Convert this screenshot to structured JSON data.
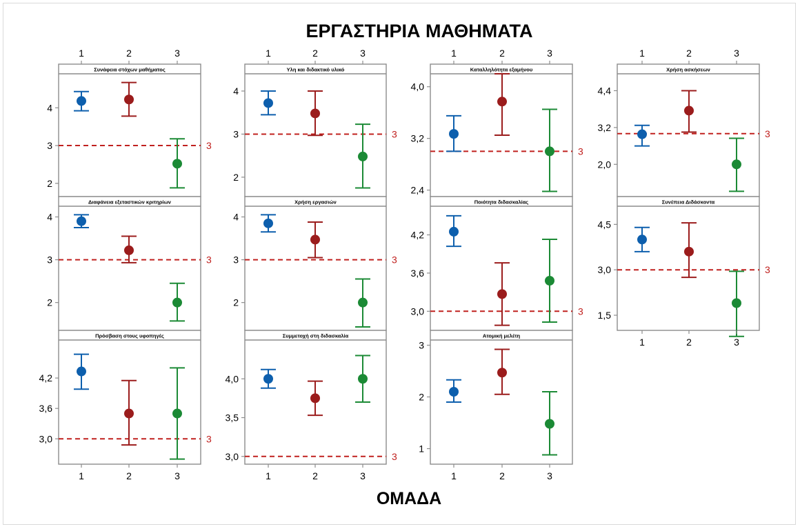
{
  "title": "ΕΡΓΑΣΤΗΡΙΑ ΜΑΘΗΜΑΤΑ",
  "colors": {
    "group1": "#0d5fad",
    "group2": "#9b1c1c",
    "group3": "#1b8a35",
    "reference": "#c0201e",
    "panel_border": "#8c8c8c"
  },
  "chart_data": {
    "type": "interval",
    "title": "ΕΡΓΑΣΤΗΡΙΑ ΜΑΘΗΜΑΤΑ",
    "xlabel": "ΟΜΑΔΑ",
    "categories": [
      "1",
      "2",
      "3"
    ],
    "reference_label": "3",
    "panels": [
      {
        "title": "Συνάφεια στόχων μαθήματος",
        "yticks": [
          "2",
          "3",
          "4"
        ],
        "ytick_values": [
          2,
          3,
          4
        ],
        "ylim": [
          1.65,
          4.9
        ],
        "reference": 3,
        "points": [
          {
            "mean": 4.18,
            "low": 3.92,
            "high": 4.43
          },
          {
            "mean": 4.22,
            "low": 3.78,
            "high": 4.67
          },
          {
            "mean": 2.52,
            "low": 1.88,
            "high": 3.18
          }
        ]
      },
      {
        "title": "Υλη και διδακτικό υλικό",
        "yticks": [
          "2",
          "3",
          "4"
        ],
        "ytick_values": [
          2,
          3,
          4
        ],
        "ylim": [
          1.55,
          4.4
        ],
        "reference": 3,
        "points": [
          {
            "mean": 3.72,
            "low": 3.45,
            "high": 4.0
          },
          {
            "mean": 3.48,
            "low": 2.97,
            "high": 4.0
          },
          {
            "mean": 2.48,
            "low": 1.75,
            "high": 3.23
          }
        ]
      },
      {
        "title": "Καταλληλότητα εξαμήνου",
        "yticks": [
          "2,4",
          "3,2",
          "4,0"
        ],
        "ytick_values": [
          2.4,
          3.2,
          4.0
        ],
        "ylim": [
          2.3,
          4.2
        ],
        "reference": 3,
        "points": [
          {
            "mean": 3.27,
            "low": 3.0,
            "high": 3.55
          },
          {
            "mean": 3.77,
            "low": 3.25,
            "high": 4.2
          },
          {
            "mean": 3.0,
            "low": 2.38,
            "high": 3.65
          }
        ]
      },
      {
        "title": "Χρήση ασκήσεων",
        "yticks": [
          "2,0",
          "3,2",
          "4,4"
        ],
        "ytick_values": [
          2.0,
          3.2,
          4.4
        ],
        "ylim": [
          0.95,
          4.95
        ],
        "reference": 3,
        "points": [
          {
            "mean": 2.98,
            "low": 2.6,
            "high": 3.27
          },
          {
            "mean": 3.75,
            "low": 3.05,
            "high": 4.4
          },
          {
            "mean": 2.0,
            "low": 1.12,
            "high": 2.85
          }
        ]
      },
      {
        "title": "Διαφάνεια εξεταστικών κριτηρίων",
        "yticks": [
          "2",
          "3",
          "4"
        ],
        "ytick_values": [
          2,
          3,
          4
        ],
        "ylim": [
          1.35,
          4.25
        ],
        "reference": 3,
        "points": [
          {
            "mean": 3.9,
            "low": 3.75,
            "high": 4.05
          },
          {
            "mean": 3.22,
            "low": 2.93,
            "high": 3.55
          },
          {
            "mean": 2.0,
            "low": 1.57,
            "high": 2.45
          }
        ]
      },
      {
        "title": "Χρήση εργασιών",
        "yticks": [
          "2",
          "3",
          "4"
        ],
        "ytick_values": [
          2,
          3,
          4
        ],
        "ylim": [
          1.35,
          4.25
        ],
        "reference": 3,
        "points": [
          {
            "mean": 3.85,
            "low": 3.65,
            "high": 4.05
          },
          {
            "mean": 3.47,
            "low": 3.05,
            "high": 3.88
          },
          {
            "mean": 2.0,
            "low": 1.43,
            "high": 2.55
          }
        ]
      },
      {
        "title": "Ποιότητα διδασκαλίας",
        "yticks": [
          "3,0",
          "3,6",
          "4,2"
        ],
        "ytick_values": [
          3.0,
          3.6,
          4.2
        ],
        "ylim": [
          2.7,
          4.65
        ],
        "reference": 3,
        "points": [
          {
            "mean": 4.25,
            "low": 4.02,
            "high": 4.5
          },
          {
            "mean": 3.27,
            "low": 2.78,
            "high": 3.76
          },
          {
            "mean": 3.48,
            "low": 2.83,
            "high": 4.13
          }
        ]
      },
      {
        "title": "Συνέπεια Διδάσκοντα",
        "yticks": [
          "1,5",
          "3,0",
          "4,5"
        ],
        "ytick_values": [
          1.5,
          3.0,
          4.5
        ],
        "ylim": [
          1.0,
          5.1
        ],
        "reference": 3,
        "points": [
          {
            "mean": 4.0,
            "low": 3.6,
            "high": 4.4
          },
          {
            "mean": 3.6,
            "low": 2.75,
            "high": 4.55
          },
          {
            "mean": 1.9,
            "low": 0.8,
            "high": 2.95
          }
        ]
      },
      {
        "title": "Πρόσβαση στους υφοπηγές",
        "yticks": [
          "3,0",
          "3,6",
          "4,2"
        ],
        "ytick_values": [
          3.0,
          3.6,
          4.2
        ],
        "ylim": [
          2.5,
          4.95
        ],
        "reference": 3,
        "points": [
          {
            "mean": 4.33,
            "low": 3.98,
            "high": 4.67
          },
          {
            "mean": 3.5,
            "low": 2.88,
            "high": 4.15
          },
          {
            "mean": 3.5,
            "low": 2.6,
            "high": 4.4
          }
        ]
      },
      {
        "title": "Συμμετοχή στη διδασκαλία",
        "yticks": [
          "3,0",
          "3,5",
          "4,0"
        ],
        "ytick_values": [
          3.0,
          3.5,
          4.0
        ],
        "ylim": [
          2.9,
          4.5
        ],
        "reference": 3,
        "points": [
          {
            "mean": 4.0,
            "low": 3.88,
            "high": 4.12
          },
          {
            "mean": 3.75,
            "low": 3.53,
            "high": 3.97
          },
          {
            "mean": 4.0,
            "low": 3.7,
            "high": 4.3
          }
        ]
      },
      {
        "title": "Ατομική μελέτη",
        "yticks": [
          "1",
          "2",
          "3"
        ],
        "ytick_values": [
          1,
          2,
          3
        ],
        "ylim": [
          0.7,
          3.1
        ],
        "reference": null,
        "points": [
          {
            "mean": 2.1,
            "low": 1.9,
            "high": 2.33
          },
          {
            "mean": 2.47,
            "low": 2.05,
            "high": 2.92
          },
          {
            "mean": 1.48,
            "low": 0.88,
            "high": 2.1
          }
        ]
      }
    ]
  }
}
